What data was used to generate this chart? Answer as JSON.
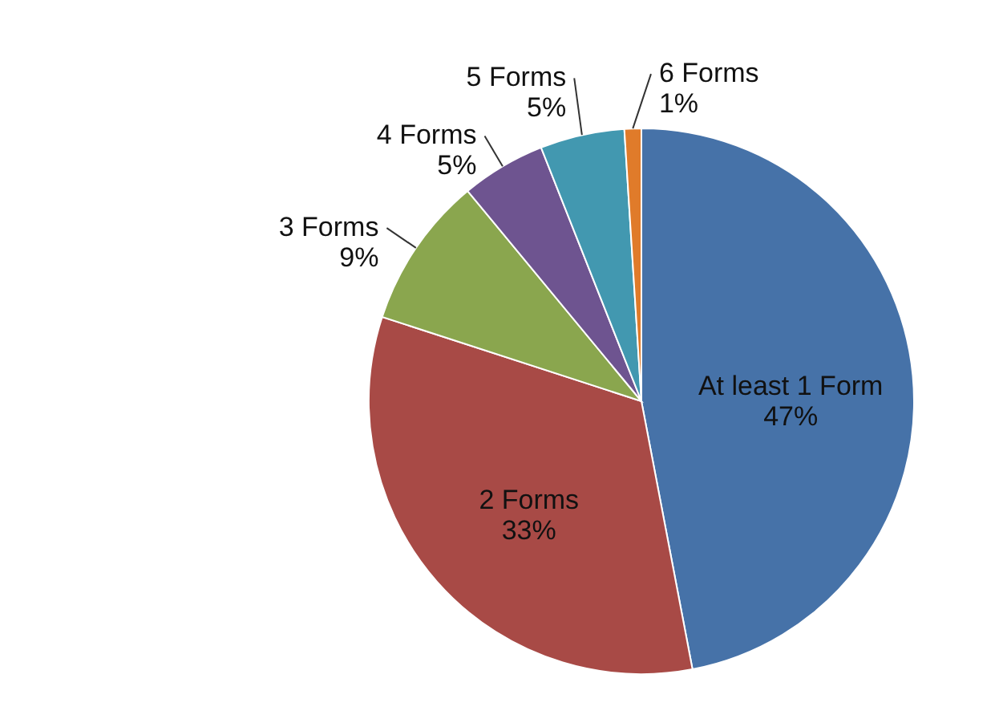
{
  "chart_data": {
    "type": "pie",
    "categories": [
      "At least 1 Form",
      "2 Forms",
      "3 Forms",
      "4 Forms",
      "5 Forms",
      "6 Forms"
    ],
    "values": [
      47,
      33,
      9,
      5,
      5,
      1
    ],
    "value_labels": [
      "47%",
      "33%",
      "9%",
      "5%",
      "5%",
      "1%"
    ],
    "colors": [
      "#4672a8",
      "#a84a46",
      "#8aa64e",
      "#6e5490",
      "#4298b0",
      "#e07b2a"
    ]
  }
}
